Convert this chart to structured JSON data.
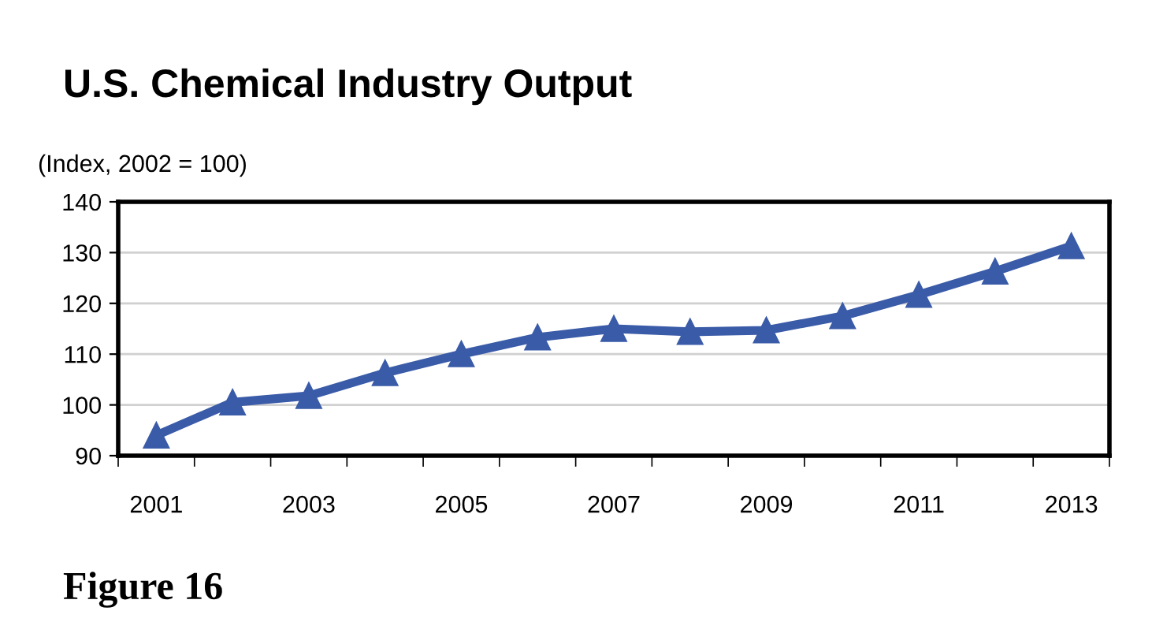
{
  "chart_data": {
    "type": "line",
    "title": "U.S. Chemical Industry Output",
    "ylabel": "(Index, 2002 = 100)",
    "categories": [
      "2001",
      null,
      "2003",
      null,
      "2005",
      null,
      "2007",
      null,
      "2009",
      null,
      "2011",
      null,
      "2013"
    ],
    "series": [
      {
        "color": "#3a5ba8",
        "values": [
          94,
          100.5,
          101.8,
          106.3,
          110,
          113.3,
          115,
          114.4,
          114.7,
          117.5,
          121.7,
          126.3,
          131.3
        ]
      }
    ],
    "ylim": [
      90,
      140
    ],
    "yticks": [
      90,
      100,
      110,
      120,
      130,
      140
    ],
    "grid": "y",
    "marker": "triangle",
    "line_style": "solid",
    "legend": false,
    "annotations": [
      "Figure 16"
    ]
  }
}
